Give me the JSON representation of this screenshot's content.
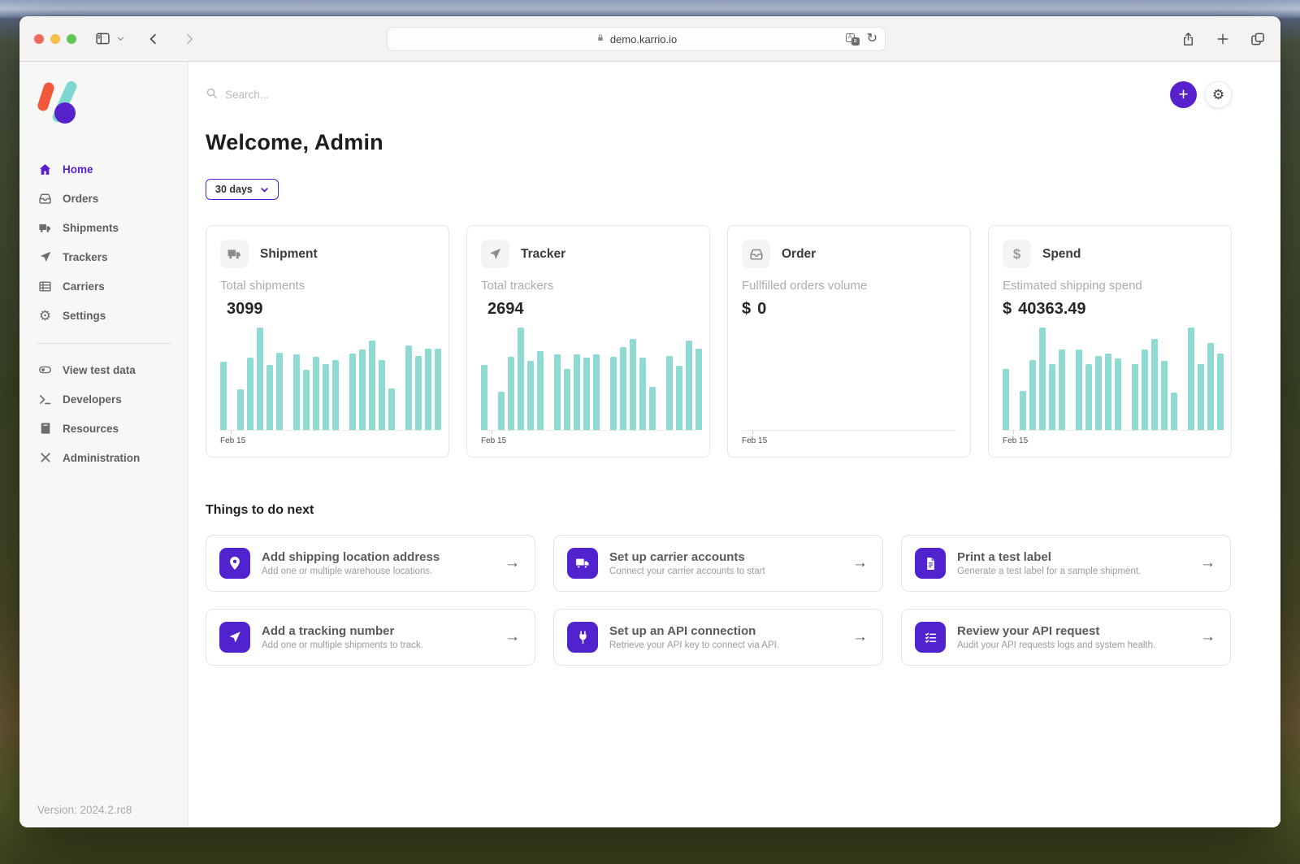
{
  "colors": {
    "accent": "#5722cc",
    "chart_bar": "#8fdbd3",
    "task_icon_bg": "#5123cf"
  },
  "browser": {
    "url": "demo.karrio.io",
    "reload_glyph": "↻"
  },
  "sidebar": {
    "nav": [
      {
        "label": "Home",
        "icon": "home-icon",
        "active": true
      },
      {
        "label": "Orders",
        "icon": "inbox-icon",
        "active": false
      },
      {
        "label": "Shipments",
        "icon": "truck-icon",
        "active": false
      },
      {
        "label": "Trackers",
        "icon": "navigation-icon",
        "active": false
      },
      {
        "label": "Carriers",
        "icon": "table-icon",
        "active": false
      },
      {
        "label": "Settings",
        "icon": "gear-icon",
        "active": false
      }
    ],
    "secondary": [
      {
        "label": "View test data",
        "icon": "toggle-eye-icon"
      },
      {
        "label": "Developers",
        "icon": "terminal-icon"
      },
      {
        "label": "Resources",
        "icon": "book-icon"
      },
      {
        "label": "Administration",
        "icon": "tools-icon"
      }
    ],
    "version": "Version: 2024.2.rc8"
  },
  "topbar": {
    "search_placeholder": "Search...",
    "add_button": "+",
    "settings_glyph": "⚙"
  },
  "page": {
    "welcome": "Welcome, Admin",
    "period": "30 days",
    "todo_title": "Things to do next"
  },
  "stats": [
    {
      "title": "Shipment",
      "subtitle": "Total shipments",
      "prefix": "",
      "value": "3099",
      "icon": "truck-icon",
      "chart": {
        "type": "bar",
        "x_label": "Feb 15",
        "note": "daily shipments over 30 days, relative heights %",
        "values": [
          66,
          null,
          39,
          70,
          99,
          63,
          75,
          null,
          73,
          58,
          71,
          64,
          68,
          null,
          74,
          78,
          87,
          68,
          40,
          null,
          82,
          72,
          79,
          79
        ]
      }
    },
    {
      "title": "Tracker",
      "subtitle": "Total trackers",
      "prefix": "",
      "value": "2694",
      "icon": "navigation-icon",
      "chart": {
        "type": "bar",
        "x_label": "Feb 15",
        "note": "daily trackers over 30 days, relative heights %",
        "values": [
          63,
          null,
          37,
          71,
          99,
          67,
          76,
          null,
          73,
          59,
          73,
          70,
          73,
          null,
          71,
          80,
          88,
          70,
          42,
          null,
          72,
          62,
          87,
          79
        ]
      }
    },
    {
      "title": "Order",
      "subtitle": "Fullfilled orders volume",
      "prefix": "$",
      "value": "0",
      "icon": "inbox-icon",
      "chart": {
        "type": "bar",
        "x_label": "Feb 15",
        "note": "no data",
        "values": []
      }
    },
    {
      "title": "Spend",
      "subtitle": "Estimated shipping spend",
      "prefix": "$",
      "value": "40363.49",
      "icon": "dollar-icon",
      "chart": {
        "type": "bar",
        "x_label": "Feb 15",
        "note": "daily spend over 30 days, relative heights %",
        "values": [
          59,
          null,
          38,
          68,
          99,
          64,
          78,
          null,
          78,
          64,
          72,
          74,
          69,
          null,
          64,
          78,
          88,
          67,
          36,
          null,
          99,
          64,
          84,
          74
        ]
      }
    }
  ],
  "todo": [
    {
      "title": "Add shipping location address",
      "subtitle": "Add one or multiple warehouse locations.",
      "icon": "map-pin-icon",
      "arrow": "→"
    },
    {
      "title": "Set up carrier accounts",
      "subtitle": "Connect your carrier accounts to start",
      "icon": "truck-icon",
      "arrow": "→"
    },
    {
      "title": "Print a test label",
      "subtitle": "Generate a test label for a sample shipment.",
      "icon": "document-icon",
      "arrow": "→"
    },
    {
      "title": "Add a tracking number",
      "subtitle": "Add one or multiple shipments to track.",
      "icon": "navigation-icon",
      "arrow": "→"
    },
    {
      "title": "Set up an API connection",
      "subtitle": "Retrieve your API key to connect via API.",
      "icon": "plug-icon",
      "arrow": "→"
    },
    {
      "title": "Review your API request",
      "subtitle": "Audit your API requests logs and system health.",
      "icon": "checklist-icon",
      "arrow": "→"
    }
  ]
}
